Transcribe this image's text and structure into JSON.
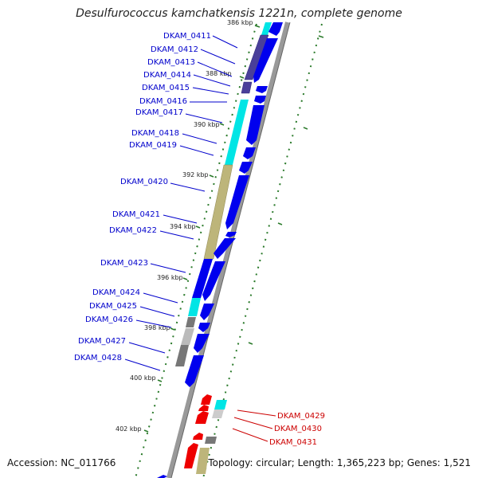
{
  "title": "Desulfurococcus kamchatkensis 1221n, complete genome",
  "footer": {
    "accession": "Accession: NC_011766",
    "stats": "Topology: circular; Length: 1,365,223 bp; Genes: 1,521"
  },
  "colors": {
    "forward_strand": "#0000ee",
    "reverse_strand": "#ee0000",
    "accent_cyan": "#00e5e5",
    "accent_olive": "#bdb57a",
    "accent_violet": "#4a3f9a",
    "accent_gray": "#777777",
    "tick_green": "#2a7a2a",
    "backbone_gray": "#999999"
  },
  "scale": {
    "ticks": [
      "386 kbp",
      "388 kbp",
      "390 kbp",
      "392 kbp",
      "394 kbp",
      "396 kbp",
      "398 kbp",
      "400 kbp",
      "402 kbp"
    ]
  },
  "genes": [
    {
      "locus": "DKAM_0411",
      "strand": "forward"
    },
    {
      "locus": "DKAM_0412",
      "strand": "forward"
    },
    {
      "locus": "DKAM_0413",
      "strand": "forward"
    },
    {
      "locus": "DKAM_0414",
      "strand": "forward"
    },
    {
      "locus": "DKAM_0415",
      "strand": "forward"
    },
    {
      "locus": "DKAM_0416",
      "strand": "forward"
    },
    {
      "locus": "DKAM_0417",
      "strand": "forward"
    },
    {
      "locus": "DKAM_0418",
      "strand": "forward"
    },
    {
      "locus": "DKAM_0419",
      "strand": "forward"
    },
    {
      "locus": "DKAM_0420",
      "strand": "forward"
    },
    {
      "locus": "DKAM_0421",
      "strand": "forward"
    },
    {
      "locus": "DKAM_0422",
      "strand": "forward"
    },
    {
      "locus": "DKAM_0423",
      "strand": "forward"
    },
    {
      "locus": "DKAM_0424",
      "strand": "forward"
    },
    {
      "locus": "DKAM_0425",
      "strand": "forward"
    },
    {
      "locus": "DKAM_0426",
      "strand": "forward"
    },
    {
      "locus": "DKAM_0427",
      "strand": "forward"
    },
    {
      "locus": "DKAM_0428",
      "strand": "forward"
    },
    {
      "locus": "DKAM_0429",
      "strand": "reverse"
    },
    {
      "locus": "DKAM_0430",
      "strand": "reverse"
    },
    {
      "locus": "DKAM_0431",
      "strand": "reverse"
    }
  ]
}
